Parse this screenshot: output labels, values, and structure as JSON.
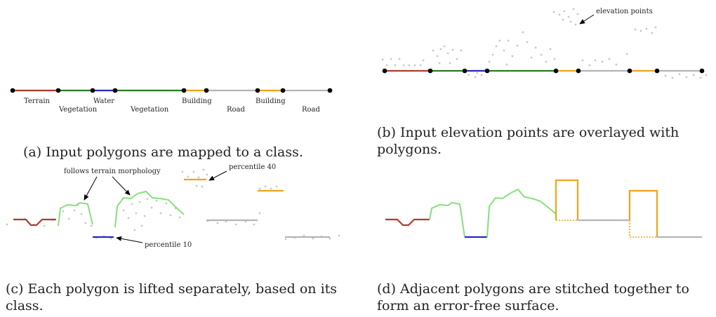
{
  "colors": {
    "terrain": "#b03a2e",
    "water": "#2626c8",
    "vegetation": "#2a7a22",
    "vegetation_lifted": "#86e07a",
    "building": "#f2a21a",
    "road": "#b4b4b4",
    "points": "#c8c8c8",
    "vertex": "#000000"
  },
  "panel_a": {
    "caption": "(a) Input polygons are mapped to a class.",
    "labels": [
      "Terrain",
      "Vegetation",
      "Water",
      "Vegetation",
      "Building",
      "Road",
      "Building",
      "Road"
    ]
  },
  "panel_b": {
    "caption": "(b) Input elevation points are overlayed with polygons.",
    "annotation": "elevation points"
  },
  "panel_c": {
    "caption": "(c) Each polygon is lifted separately, based on its class.",
    "annotation_morphology": "follows terrain morphology",
    "annotation_p40": "percentile 40",
    "annotation_p10": "percentile 10"
  },
  "panel_d": {
    "caption": "(d) Adjacent polygons are stitched together to form an error-free surface."
  }
}
